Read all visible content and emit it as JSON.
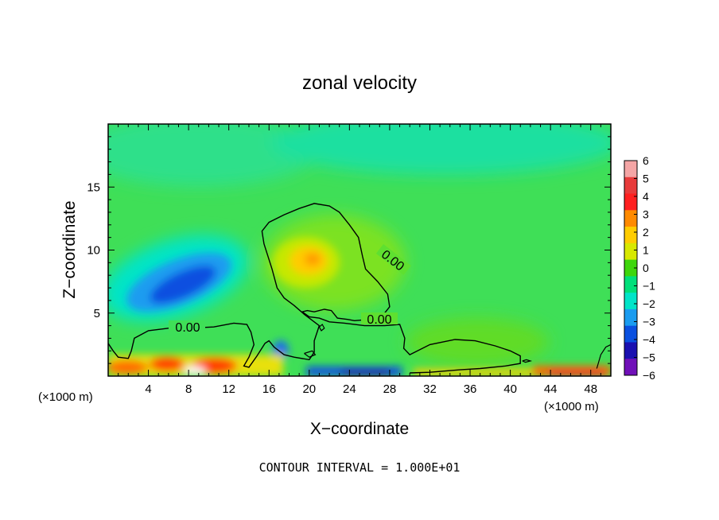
{
  "chart_data": {
    "type": "heatmap",
    "title": "zonal velocity",
    "xlabel": "X−coordinate",
    "ylabel": "Z−coordinate",
    "x_unit_left": "(×1000 m)",
    "x_unit_right": "(×1000 m)",
    "footer": "CONTOUR INTERVAL = 1.000E+01",
    "xlim": [
      0,
      50
    ],
    "ylim": [
      0,
      20
    ],
    "x_ticks": [
      4,
      8,
      12,
      16,
      20,
      24,
      28,
      32,
      36,
      40,
      44,
      48
    ],
    "y_ticks": [
      5,
      10,
      15
    ],
    "colorbar": {
      "range": [
        -6,
        6
      ],
      "tick_labels": [
        "6",
        "5",
        "4",
        "3",
        "2",
        "1",
        "0",
        "−1",
        "−2",
        "−3",
        "−4",
        "−5",
        "−6"
      ],
      "levels": [
        {
          "value": 6,
          "color": "#f4a5a5"
        },
        {
          "value": 5,
          "color": "#e83b3b"
        },
        {
          "value": 4,
          "color": "#ff2020"
        },
        {
          "value": 3,
          "color": "#ff8a00"
        },
        {
          "value": 2,
          "color": "#ffcc00"
        },
        {
          "value": 1,
          "color": "#d8e800"
        },
        {
          "value": 0,
          "color": "#3ed60c"
        },
        {
          "value": -1,
          "color": "#00e07a"
        },
        {
          "value": -2,
          "color": "#00e4c8"
        },
        {
          "value": -3,
          "color": "#1a9cf0"
        },
        {
          "value": -4,
          "color": "#0a50e0"
        },
        {
          "value": -5,
          "color": "#1a10b0"
        },
        {
          "value": -6,
          "color": "#7010b8"
        }
      ]
    },
    "contour_labels": [
      "0.00",
      "0.00",
      "0.00"
    ],
    "features": [
      {
        "name": "positive-core",
        "x": 20.5,
        "z": 9.5,
        "value": 2.5
      },
      {
        "name": "negative-core",
        "x": 9.5,
        "z": 7.5,
        "value": -4.5
      },
      {
        "name": "lower-negative",
        "x": 17.5,
        "z": 1.5,
        "value": -3
      }
    ],
    "zero_contour": [
      [
        0.0,
        2.6
      ],
      [
        0.5,
        2.0
      ],
      [
        1.0,
        1.5
      ],
      [
        2.0,
        1.4
      ],
      [
        2.3,
        2.0
      ],
      [
        2.6,
        3.0
      ],
      [
        4.0,
        3.6
      ],
      [
        6.0,
        3.8
      ],
      [
        8.0,
        3.8
      ],
      [
        10.5,
        3.9
      ],
      [
        12.5,
        4.2
      ],
      [
        13.8,
        4.1
      ],
      [
        14.2,
        3.5
      ],
      [
        14.5,
        2.5
      ],
      [
        14.0,
        1.5
      ],
      [
        13.5,
        0.8
      ],
      [
        14.0,
        0.7
      ],
      [
        14.8,
        1.6
      ],
      [
        15.6,
        2.6
      ],
      [
        16.0,
        2.8
      ],
      [
        16.5,
        2.3
      ],
      [
        17.5,
        1.7
      ],
      [
        18.5,
        1.5
      ],
      [
        20.0,
        1.3
      ],
      [
        20.5,
        1.9
      ],
      [
        20.5,
        2.8
      ],
      [
        21.0,
        4.0
      ],
      [
        19.5,
        4.9
      ],
      [
        18.5,
        5.6
      ],
      [
        17.5,
        6.2
      ],
      [
        16.8,
        7.0
      ],
      [
        16.3,
        8.5
      ],
      [
        15.5,
        10.5
      ],
      [
        15.3,
        11.5
      ],
      [
        16.0,
        12.2
      ],
      [
        17.5,
        12.8
      ],
      [
        19.0,
        13.3
      ],
      [
        20.5,
        13.7
      ],
      [
        22.0,
        13.5
      ],
      [
        23.0,
        13.0
      ],
      [
        24.0,
        12.0
      ],
      [
        24.9,
        11.0
      ],
      [
        25.3,
        9.5
      ],
      [
        25.6,
        8.5
      ],
      [
        26.8,
        7.5
      ],
      [
        27.8,
        6.5
      ],
      [
        28.0,
        5.5
      ],
      [
        27.3,
        4.8
      ],
      [
        26.0,
        4.5
      ],
      [
        24.5,
        4.4
      ],
      [
        23.8,
        4.5
      ],
      [
        22.8,
        4.6
      ],
      [
        22.2,
        5.2
      ],
      [
        21.5,
        5.3
      ],
      [
        20.5,
        5.1
      ],
      [
        19.8,
        5.2
      ],
      [
        19.3,
        5.1
      ],
      [
        20.0,
        4.7
      ],
      [
        21.0,
        4.6
      ],
      [
        22.0,
        4.3
      ],
      [
        23.5,
        4.2
      ],
      [
        25.5,
        4.0
      ],
      [
        27.5,
        4.0
      ],
      [
        29.0,
        4.1
      ],
      [
        29.5,
        3.0
      ],
      [
        29.4,
        2.2
      ],
      [
        30.0,
        1.7
      ],
      [
        32.0,
        2.5
      ],
      [
        34.5,
        2.9
      ],
      [
        36.5,
        2.8
      ],
      [
        38.5,
        2.4
      ],
      [
        40.0,
        2.0
      ],
      [
        41.0,
        1.6
      ],
      [
        41.0,
        1.0
      ],
      [
        39.5,
        0.8
      ],
      [
        37.0,
        0.6
      ],
      [
        35.0,
        0.5
      ],
      [
        32.0,
        0.3
      ],
      [
        30.0,
        0.25
      ]
    ],
    "small_contours": [
      [
        [
          21.0,
          3.9
        ],
        [
          21.3,
          4.1
        ],
        [
          21.5,
          3.8
        ],
        [
          21.2,
          3.6
        ],
        [
          21.0,
          3.9
        ]
      ],
      [
        [
          19.5,
          1.8
        ],
        [
          20.3,
          2.0
        ],
        [
          20.6,
          1.7
        ],
        [
          20.0,
          1.5
        ],
        [
          19.5,
          1.8
        ]
      ],
      [
        [
          41.2,
          1.2
        ],
        [
          41.6,
          1.3
        ],
        [
          42.0,
          1.2
        ],
        [
          41.5,
          1.1
        ],
        [
          41.2,
          1.2
        ]
      ],
      [
        [
          48.6,
          0.6
        ],
        [
          49.0,
          1.7
        ],
        [
          49.5,
          2.3
        ],
        [
          50.0,
          2.5
        ]
      ]
    ]
  }
}
